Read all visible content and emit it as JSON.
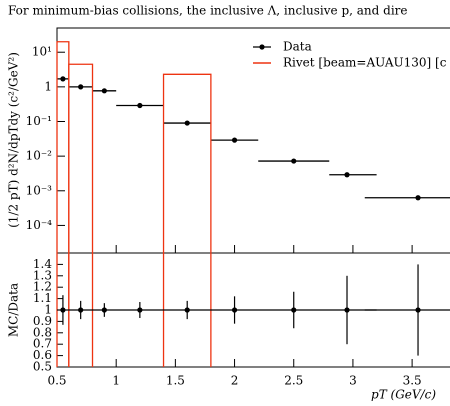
{
  "chart_data": [
    {
      "type": "scatter",
      "title": "For minimum-bias collisions, the inclusive Λ, inclusive p, and dire",
      "ylabel": "(1/2 pT) d²N/dpTdy (c²/GeV²)",
      "log_y": true,
      "xlim": [
        0.5,
        4.12
      ],
      "ylim": [
        1.6e-05,
        50
      ],
      "yticks": [
        {
          "value": 10,
          "label": "10¹"
        },
        1,
        {
          "value": 0.1,
          "label": "10⁻¹"
        },
        {
          "value": 0.01,
          "label": "10⁻²"
        },
        {
          "value": 0.001,
          "label": "10⁻³"
        },
        {
          "value": 0.0001,
          "label": "10⁻⁴"
        }
      ],
      "legend": "upper right",
      "series": [
        {
          "name": "Data",
          "color": "#000000",
          "x": [
            0.55,
            0.7,
            0.9,
            1.2,
            1.6,
            2.0,
            2.5,
            2.95,
            3.55
          ],
          "values": [
            1.7,
            1.0,
            0.77,
            0.29,
            0.09,
            0.029,
            0.0072,
            0.0029,
            0.00063
          ],
          "xlow": [
            0.5,
            0.6,
            0.8,
            1.0,
            1.4,
            1.8,
            2.2,
            2.8,
            3.1
          ],
          "xhigh": [
            0.6,
            0.8,
            1.0,
            1.4,
            1.8,
            2.2,
            2.8,
            3.2,
            4.12
          ]
        },
        {
          "name": "Rivet [beam=AUAU130] [c",
          "color": "#ee3311",
          "type": "step",
          "bins": [
            0.5,
            0.6,
            0.8,
            1.0,
            1.4,
            1.8,
            2.2,
            2.8,
            3.1,
            4.12
          ],
          "values": [
            20,
            4.5,
            0,
            0,
            2.3,
            0,
            0,
            0,
            0
          ]
        }
      ]
    },
    {
      "type": "scatter",
      "xlabel": "pT (GeV/c)",
      "ylabel": "MC/Data",
      "xlim": [
        0.5,
        4.12
      ],
      "ylim": [
        0.5,
        1.5
      ],
      "xticks": [
        0.5,
        1,
        1.5,
        2,
        2.5,
        3,
        3.5
      ],
      "yticks": [
        0.5,
        0.6,
        0.7,
        0.8,
        0.9,
        1,
        1.1,
        1.2,
        1.3,
        1.4
      ],
      "series": [
        {
          "color": "#000000",
          "x": [
            0.55,
            0.7,
            0.9,
            1.2,
            1.6,
            2.0,
            2.5,
            2.95,
            3.55
          ],
          "values": [
            1,
            1,
            1,
            1,
            1,
            1,
            1,
            1,
            1
          ],
          "errors": [
            0.13,
            0.08,
            0.06,
            0.07,
            0.08,
            0.12,
            0.16,
            0.3,
            0.4
          ]
        }
      ]
    }
  ]
}
